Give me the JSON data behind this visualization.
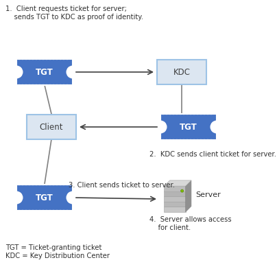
{
  "title_text": "1.  Client requests ticket for server;\n    sends TGT to KDC as proof of identity.",
  "step2_text": "2.  KDC sends client ticket for server.",
  "step3_text": "3. Client sends ticket to server.",
  "step4_text": "4.  Server allows access\n    for client.",
  "legend_text": "TGT = Ticket-granting ticket\nKDC = Key Distribution Center",
  "tgt_color": "#4472C4",
  "tgt_text_color": "#FFFFFF",
  "kdc_fill": "#DCE6F1",
  "kdc_border": "#9DC3E6",
  "client_fill": "#DCE6F1",
  "client_border": "#9DC3E6",
  "bg_color": "#FFFFFF",
  "arrow_color": "#404040",
  "line_color": "#808080"
}
